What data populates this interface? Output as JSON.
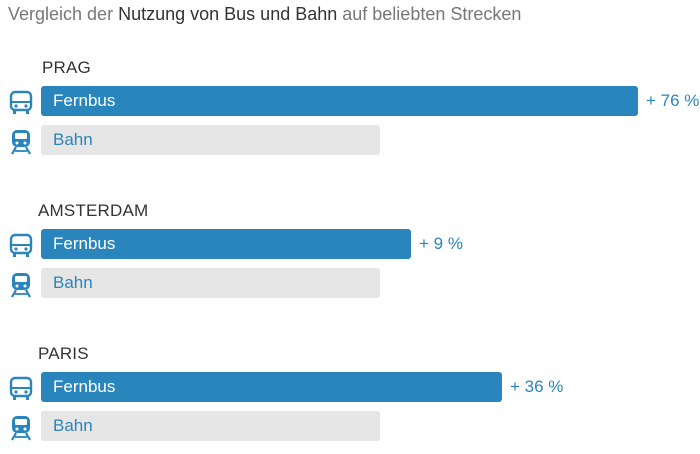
{
  "chart_data": {
    "type": "bar",
    "title_parts": [
      "Vergleich der",
      "Nutzung von Bus und Bahn",
      "auf beliebten Strecken"
    ],
    "series_names": [
      "Fernbus",
      "Bahn"
    ],
    "groups": [
      {
        "city": "PRAG",
        "bus_value": 176,
        "rail_value": 100,
        "delta_label": "+ 76 %"
      },
      {
        "city": "AMSTERDAM",
        "bus_value": 109,
        "rail_value": 100,
        "delta_label": "+ 9 %"
      },
      {
        "city": "PARIS",
        "bus_value": 136,
        "rail_value": 100,
        "delta_label": "+ 36 %"
      }
    ],
    "baseline": 100,
    "colors": {
      "bus": "#2b85bd",
      "rail": "#e6e6e6",
      "accent": "#2b85bd"
    }
  }
}
